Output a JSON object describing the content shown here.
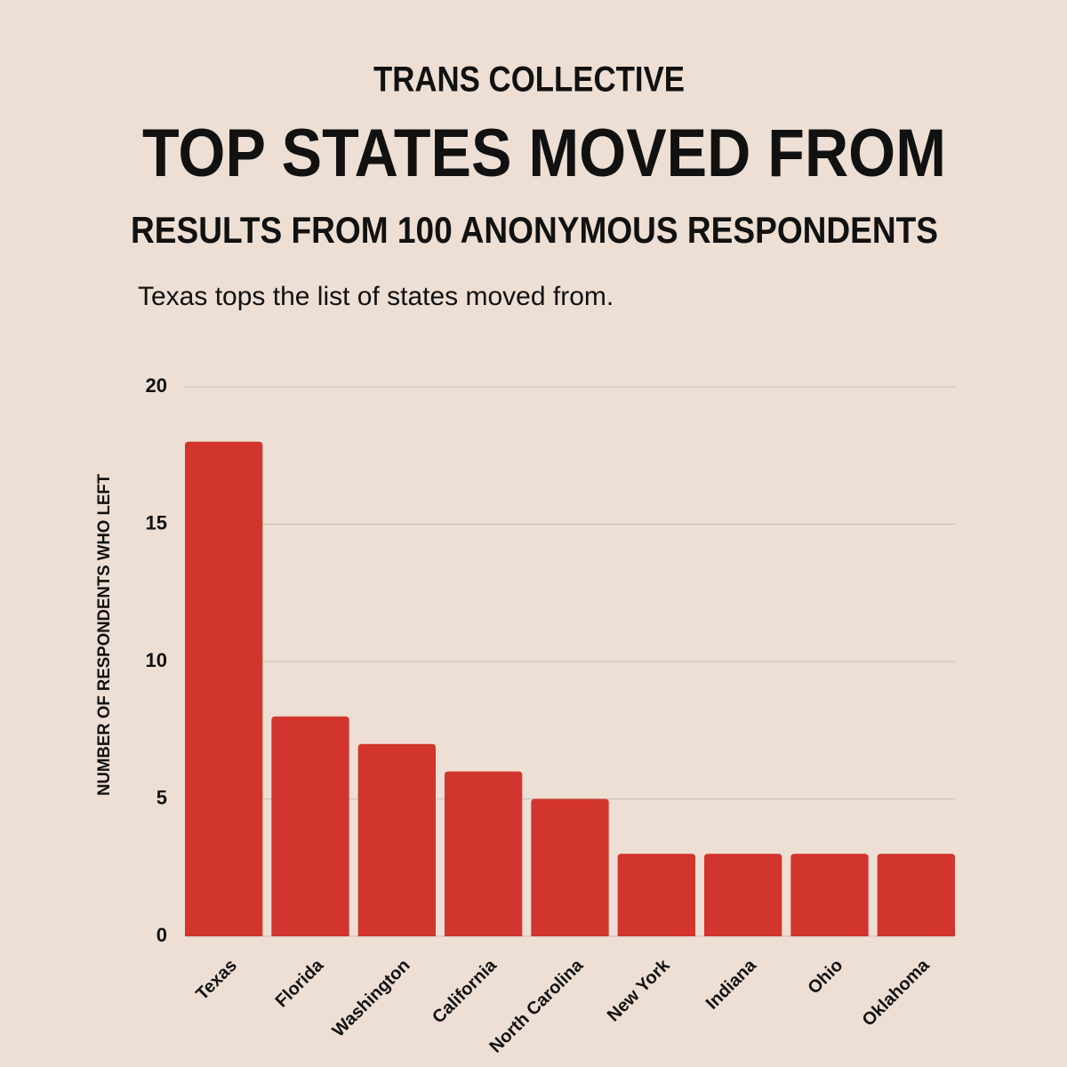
{
  "chart_data": {
    "type": "bar",
    "supertitle": "TRANS COLLECTIVE",
    "title": "TOP STATES MOVED FROM",
    "subtitle": "RESULTS FROM 100 ANONYMOUS RESPONDENTS",
    "annotation": "Texas tops the list of states moved from.",
    "ylabel": "NUMBER OF RESPONDENTS WHO LEFT",
    "categories": [
      "Texas",
      "Florida",
      "Washington",
      "California",
      "North Carolina",
      "New York",
      "Indiana",
      "Ohio",
      "Oklahoma"
    ],
    "values": [
      18,
      8,
      7,
      6,
      5,
      3,
      3,
      3,
      3
    ],
    "color": "#d2342e",
    "ylim": [
      0,
      20
    ],
    "yticks": [
      0,
      5,
      10,
      15,
      20
    ],
    "grid": true
  }
}
